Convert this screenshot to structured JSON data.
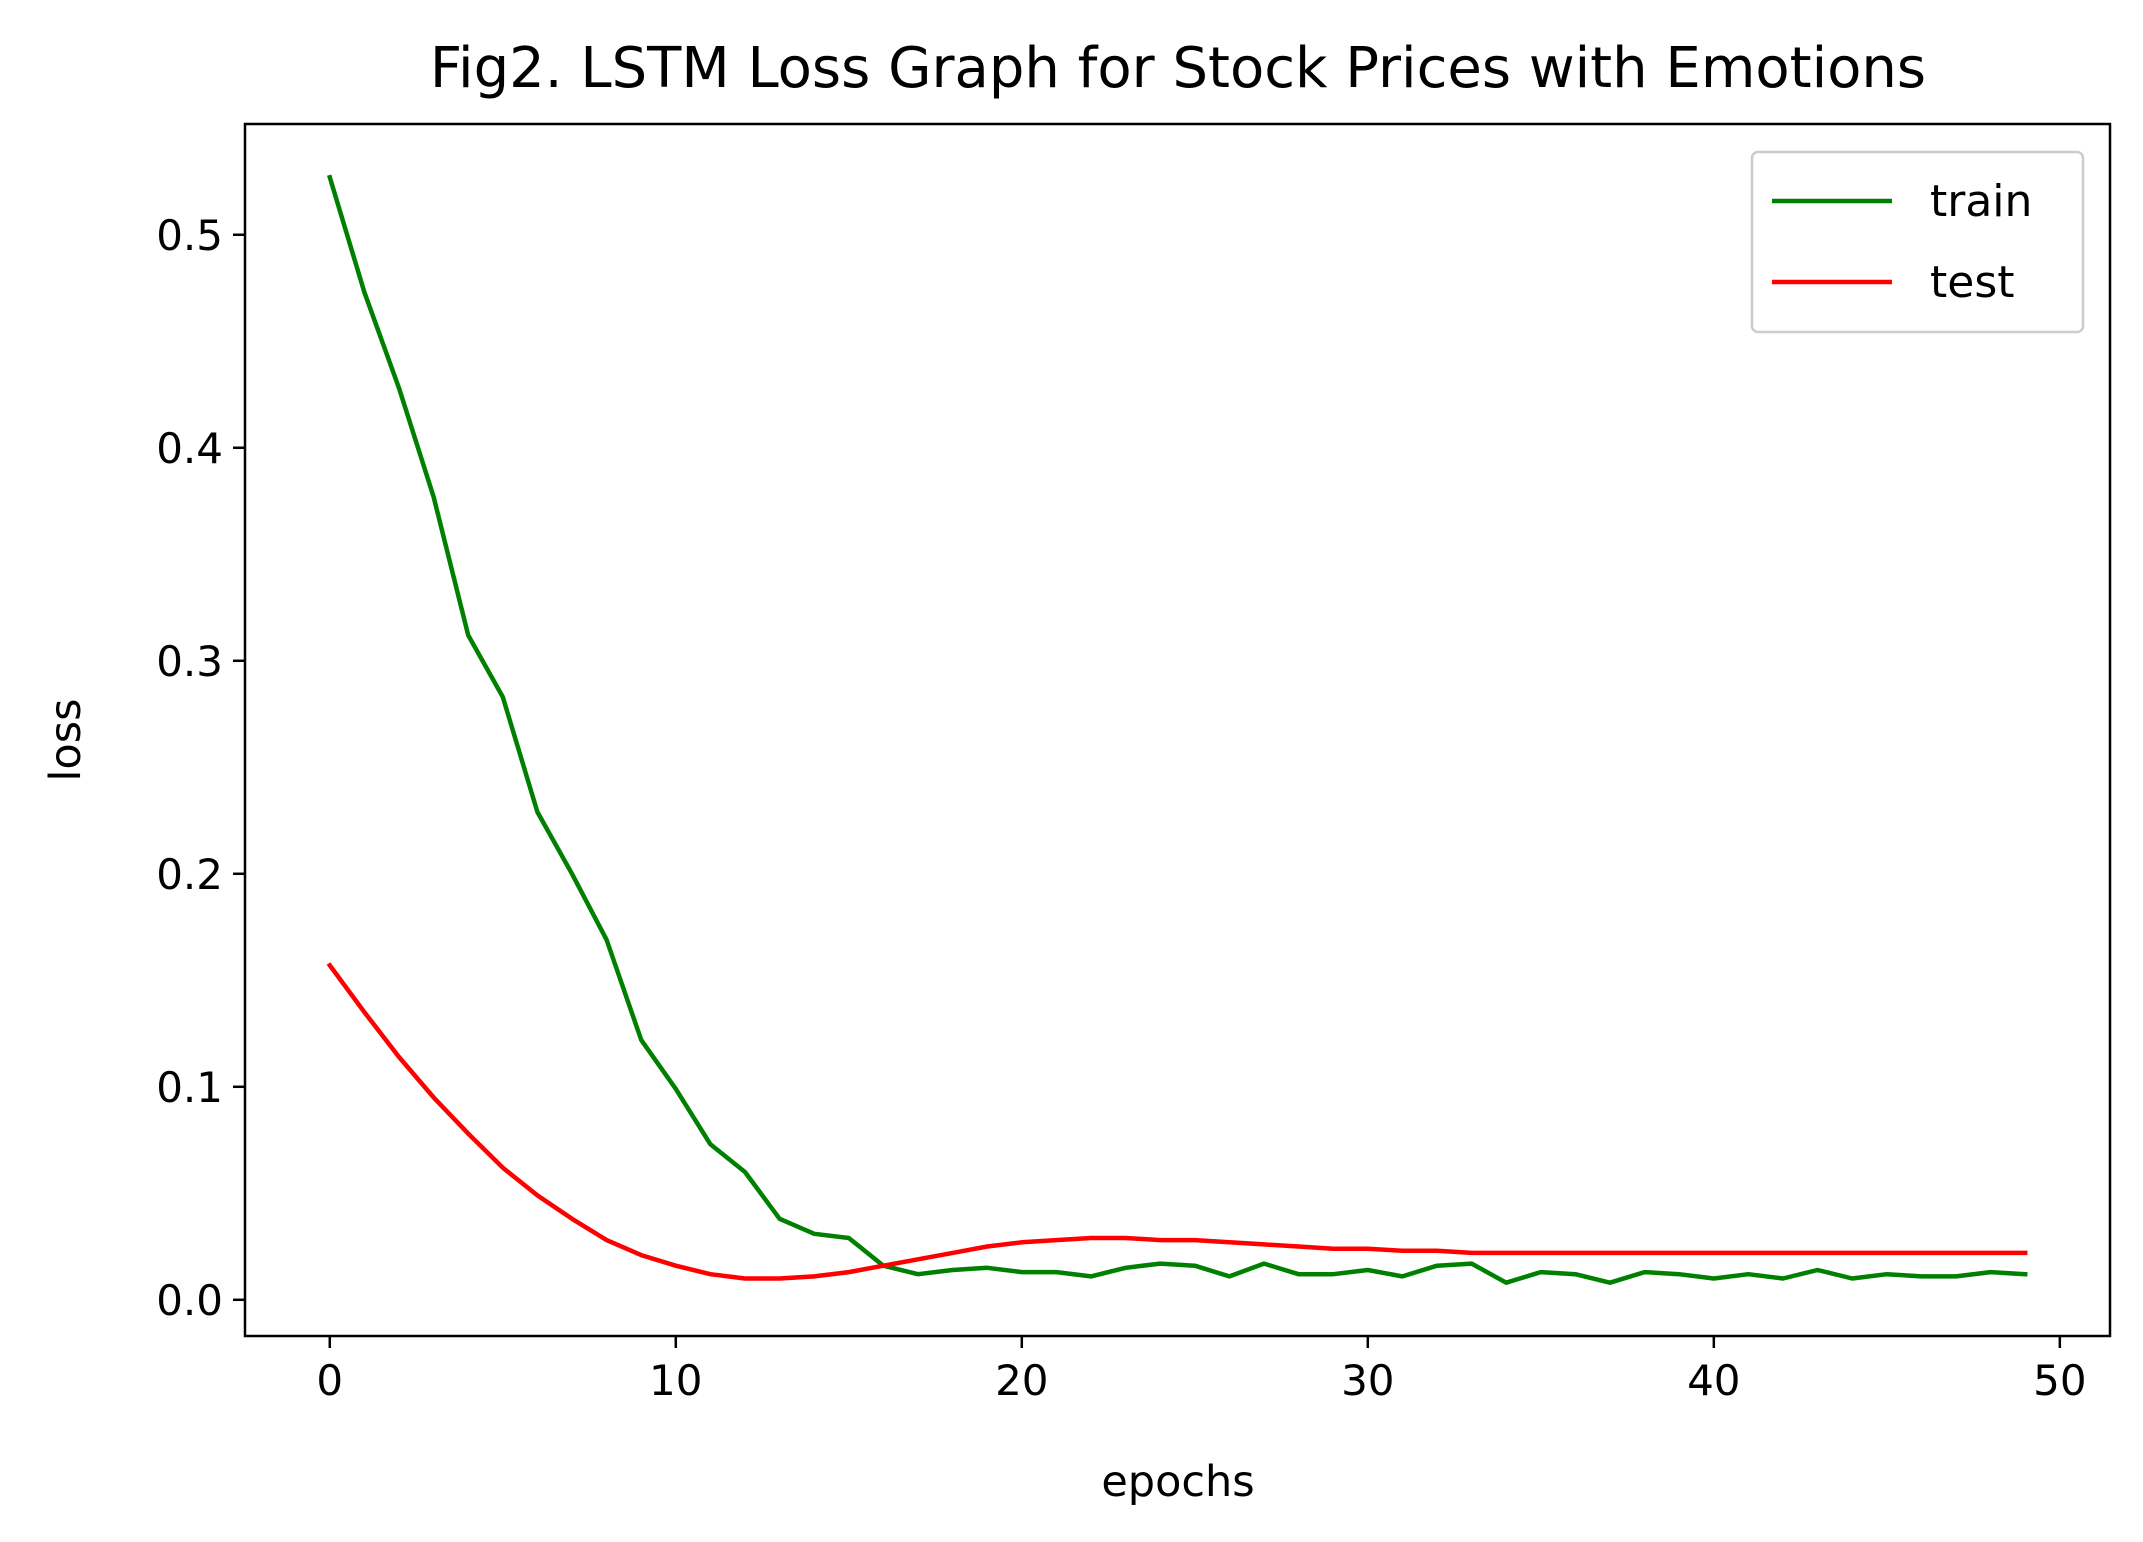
{
  "chart_data": {
    "type": "line",
    "title": "Fig2. LSTM Loss Graph for Stock Prices with Emotions",
    "xlabel": "epochs",
    "ylabel": "loss",
    "xlim": [
      -2.45,
      51.45
    ],
    "ylim": [
      -0.017,
      0.552
    ],
    "xticks": [
      0,
      10,
      20,
      30,
      40,
      50
    ],
    "xtick_labels": [
      "0",
      "10",
      "20",
      "30",
      "40",
      "50"
    ],
    "yticks": [
      0.0,
      0.1,
      0.2,
      0.3,
      0.4,
      0.5
    ],
    "ytick_labels": [
      "0.0",
      "0.1",
      "0.2",
      "0.3",
      "0.4",
      "0.5"
    ],
    "grid": false,
    "legend_position": "top-right",
    "x": [
      0,
      1,
      2,
      3,
      4,
      5,
      6,
      7,
      8,
      9,
      10,
      11,
      12,
      13,
      14,
      15,
      16,
      17,
      18,
      19,
      20,
      21,
      22,
      23,
      24,
      25,
      26,
      27,
      28,
      29,
      30,
      31,
      32,
      33,
      34,
      35,
      36,
      37,
      38,
      39,
      40,
      41,
      42,
      43,
      44,
      45,
      46,
      47,
      48,
      49
    ],
    "series": [
      {
        "name": "train",
        "color": "#008000",
        "values": [
          0.527,
          0.473,
          0.428,
          0.377,
          0.312,
          0.283,
          0.229,
          0.2,
          0.169,
          0.122,
          0.099,
          0.073,
          0.06,
          0.038,
          0.031,
          0.029,
          0.016,
          0.012,
          0.014,
          0.015,
          0.013,
          0.013,
          0.011,
          0.015,
          0.017,
          0.016,
          0.011,
          0.017,
          0.012,
          0.012,
          0.014,
          0.011,
          0.016,
          0.017,
          0.008,
          0.013,
          0.012,
          0.008,
          0.013,
          0.012,
          0.01,
          0.012,
          0.01,
          0.014,
          0.01,
          0.012,
          0.011,
          0.011,
          0.013,
          0.012
        ]
      },
      {
        "name": "test",
        "color": "#ff0000",
        "values": [
          0.157,
          0.135,
          0.114,
          0.095,
          0.078,
          0.062,
          0.049,
          0.038,
          0.028,
          0.021,
          0.016,
          0.012,
          0.01,
          0.01,
          0.011,
          0.013,
          0.016,
          0.019,
          0.022,
          0.025,
          0.027,
          0.028,
          0.029,
          0.029,
          0.028,
          0.028,
          0.027,
          0.026,
          0.025,
          0.024,
          0.024,
          0.023,
          0.023,
          0.022,
          0.022,
          0.022,
          0.022,
          0.022,
          0.022,
          0.022,
          0.022,
          0.022,
          0.022,
          0.022,
          0.022,
          0.022,
          0.022,
          0.022,
          0.022,
          0.022
        ]
      }
    ]
  }
}
